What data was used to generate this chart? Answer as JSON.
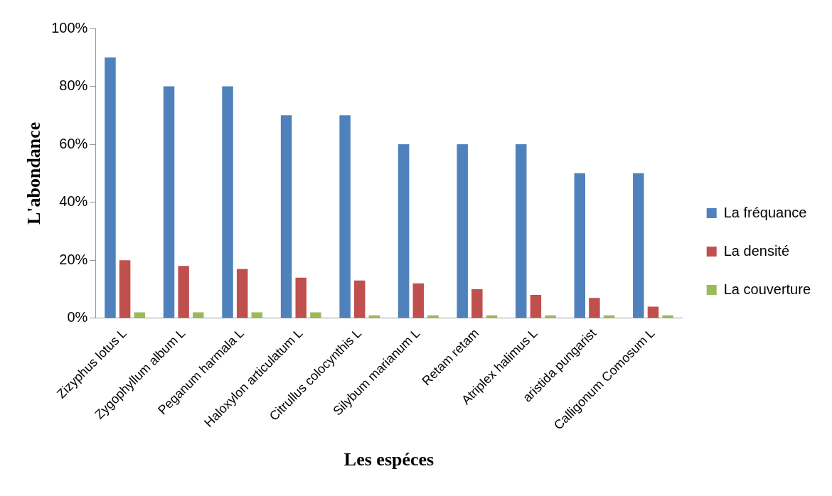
{
  "chart_data": {
    "type": "bar",
    "xlabel": "Les espéces",
    "ylabel": "L'abondance",
    "categories": [
      "Zizyphus lotus L",
      "Zygophyllum album L",
      "Peganum harmala L",
      "Haloxylon articulatum L",
      "Citrullus colocynthis L",
      "Silybum marianum L",
      "Retam retam",
      "Atriplex halimus L",
      "aristida pungarist",
      "Calligonum Comosum L"
    ],
    "series": [
      {
        "name": "La fréquance",
        "color": "#4f81bd",
        "values": [
          90,
          80,
          80,
          70,
          70,
          60,
          60,
          60,
          50,
          50
        ]
      },
      {
        "name": "La densité",
        "color": "#c0504d",
        "values": [
          20,
          18,
          17,
          14,
          13,
          12,
          10,
          8,
          7,
          4
        ]
      },
      {
        "name": "La couverture",
        "color": "#9bbb59",
        "values": [
          2,
          2,
          2,
          2,
          1,
          1,
          1,
          1,
          1,
          1
        ]
      }
    ],
    "ylim": [
      0,
      100
    ],
    "yticks": [
      {
        "value": 0,
        "label": "0%"
      },
      {
        "value": 20,
        "label": "20%"
      },
      {
        "value": 40,
        "label": "40%"
      },
      {
        "value": 60,
        "label": "60%"
      },
      {
        "value": 80,
        "label": "80%"
      },
      {
        "value": 100,
        "label": "100%"
      }
    ],
    "grid": false,
    "legend": "right"
  }
}
